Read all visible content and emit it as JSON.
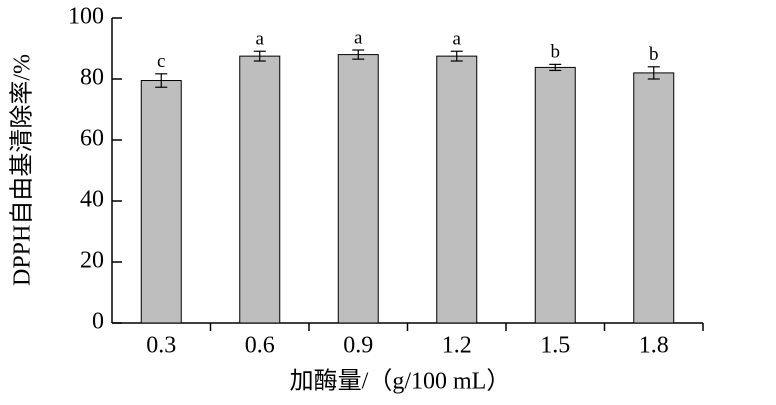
{
  "chart_data": {
    "type": "bar",
    "x_label": "加酶量/（g/100 mL）",
    "y_label": "DPPH自由基清除率/%",
    "categories": [
      "0.3",
      "0.6",
      "0.9",
      "1.2",
      "1.5",
      "1.8"
    ],
    "values": [
      79.5,
      87.5,
      88,
      87.5,
      83.8,
      82
    ],
    "errors": [
      2.2,
      1.6,
      1.5,
      1.6,
      1.0,
      2.0
    ],
    "annotations": [
      "c",
      "a",
      "a",
      "a",
      "b",
      "b"
    ],
    "color": "#bebebe",
    "ylim": [
      0,
      100
    ],
    "yticks": [
      0,
      20,
      40,
      60,
      80,
      100
    ]
  }
}
